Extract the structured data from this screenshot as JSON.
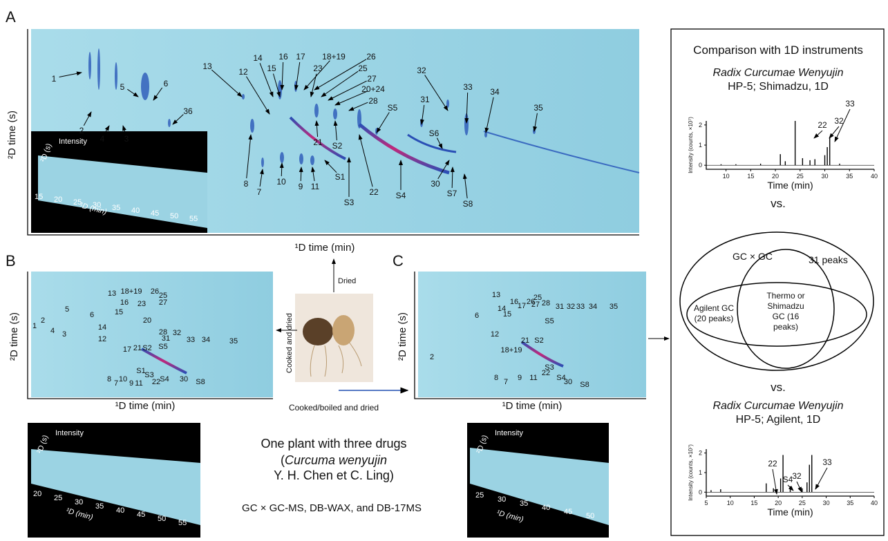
{
  "panel_a": {
    "letter": "A",
    "y_label": "²D time (s)",
    "x_label": "¹D time (min)",
    "peaks": [
      "1",
      "2",
      "4",
      "3",
      "5",
      "6",
      "36",
      "13",
      "12",
      "14",
      "15",
      "16",
      "17",
      "18+19",
      "26",
      "23",
      "25",
      "27",
      "20+24",
      "28",
      "21",
      "S2",
      "S5",
      "31",
      "32",
      "33",
      "34",
      "35",
      "S6",
      "S1",
      "S3",
      "22",
      "S4",
      "30",
      "S7",
      "S8",
      "8",
      "7",
      "10",
      "9",
      "11"
    ],
    "inset": {
      "intensity": "Intensity",
      "y_label": "²D (s)",
      "x_label": "¹D (min)",
      "ticks": [
        15,
        20,
        25,
        30,
        35,
        40,
        45,
        50,
        55
      ]
    }
  },
  "panel_b": {
    "letter": "B",
    "y_label": "²D time (s)",
    "x_label": "¹D time (min)",
    "peaks": [
      "1",
      "2",
      "4",
      "3",
      "5",
      "6",
      "13",
      "16",
      "15",
      "18+19",
      "23",
      "26",
      "25",
      "27",
      "14",
      "20",
      "28",
      "12",
      "17",
      "21",
      "S2",
      "S5",
      "32",
      "31",
      "33",
      "34",
      "35",
      "8",
      "7",
      "10",
      "9",
      "11",
      "S1",
      "S3",
      "22",
      "S4",
      "30",
      "S8"
    ],
    "inset": {
      "intensity": "Intensity",
      "y_label": "²D (s)",
      "x_label": "¹D (min)",
      "ticks": [
        20,
        25,
        30,
        35,
        40,
        45,
        50,
        55
      ]
    }
  },
  "panel_c": {
    "letter": "C",
    "y_label": "²D time (s)",
    "x_label": "¹D time (min)",
    "peaks": [
      "2",
      "6",
      "13",
      "16",
      "14",
      "15",
      "17",
      "26",
      "25",
      "27",
      "28",
      "31",
      "32",
      "33",
      "34",
      "35",
      "S5",
      "12",
      "21",
      "S2",
      "18+19",
      "8",
      "7",
      "9",
      "11",
      "S3",
      "22",
      "S4",
      "30",
      "S8"
    ],
    "inset": {
      "intensity": "Intensity",
      "y_label": "²D (s)",
      "x_label": "¹D (min)",
      "ticks": [
        25,
        30,
        35,
        40,
        45,
        50
      ]
    }
  },
  "center": {
    "dried": "Dried",
    "cooked_dried": "Cooked and dried",
    "boiled": "Cooked/boiled and dried",
    "line1": "One plant with three drugs",
    "line2_open": "(",
    "line2_italic": "Curcuma wenyujin",
    "line3": "Y. H. Chen et C. Ling)",
    "method": "GC × GC-MS, DB-WAX, and DB-17MS"
  },
  "right_panel": {
    "title": "Comparison with 1D instruments",
    "vs": "vs.",
    "chrom_1": {
      "name": "Radix Curcumae Wenyujin",
      "subtitle": "HP-5; Shimadzu, 1D",
      "y_label": "Intensity (counts, ×10⁷)",
      "x_label": "Time (min)",
      "xlim": [
        6,
        40
      ],
      "ylim": [
        -0.2,
        2.2
      ],
      "xticks": [
        10,
        15,
        20,
        25,
        30,
        35,
        40
      ],
      "yticks": [
        0,
        1,
        2
      ],
      "peaks_x": [
        9,
        12,
        17,
        21,
        22,
        24,
        25.5,
        27,
        28,
        30,
        30.5,
        31,
        33
      ],
      "peaks_y": [
        0.05,
        0.05,
        0.08,
        0.55,
        0.2,
        2.2,
        0.35,
        0.25,
        0.3,
        0.5,
        0.9,
        1.4,
        0.08
      ],
      "annotations": [
        "22",
        "32",
        "33"
      ]
    },
    "venn": {
      "outer": "GC × GC",
      "outer_count": "31 peaks",
      "agilent": "Agilent GC (20 peaks)",
      "thermo": "Thermo or Shimadzu GC (16 peaks)"
    },
    "chrom_2": {
      "name": "Radix Curcumae Wenyujin",
      "subtitle": "HP-5; Agilent, 1D",
      "y_label": "Intensity (counts, ×10⁷)",
      "x_label": "Time (min)",
      "xlim": [
        5,
        40
      ],
      "ylim": [
        -0.2,
        2.2
      ],
      "xticks": [
        5,
        10,
        15,
        20,
        25,
        30,
        35,
        40
      ],
      "yticks": [
        0,
        1,
        2
      ],
      "peaks_x": [
        6,
        8,
        17.5,
        19,
        20.5,
        21,
        22.5,
        25,
        26,
        26.5,
        27
      ],
      "peaks_y": [
        0.1,
        0.15,
        0.45,
        0.2,
        0.7,
        1.9,
        0.3,
        0.2,
        0.5,
        1.4,
        1.9
      ],
      "annotations": [
        "22",
        "S4",
        "32",
        "33"
      ]
    }
  }
}
